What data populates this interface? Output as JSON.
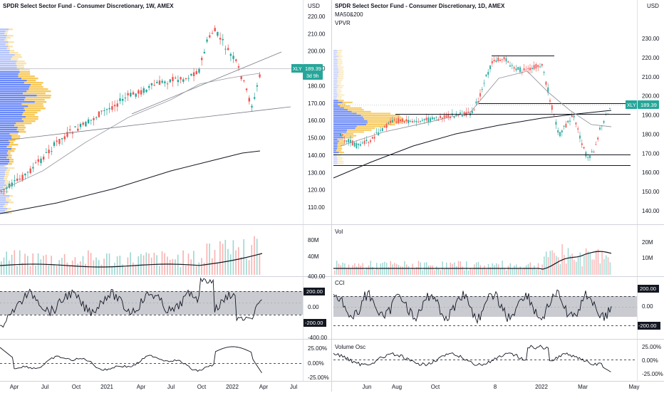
{
  "left": {
    "title": "SPDR Select Sector Fund - Consumer Discretionary, 1W, AMEX",
    "currency": "USD",
    "price_ticks": [
      "220.00",
      "210.00",
      "200.00",
      "190.00",
      "180.00",
      "170.00",
      "160.00",
      "150.00",
      "140.00",
      "130.00",
      "120.00",
      "110.00"
    ],
    "ticker": "XLY",
    "price": "189.39",
    "countdown": "3d 9h",
    "vol_ticks": [
      "80M",
      "40M",
      "400.00"
    ],
    "cci_ticks": [
      "200.00",
      "0.00",
      "-200.00",
      "-400.00"
    ],
    "osc_ticks": [
      "25.00%",
      "0.00%",
      "-25.00%"
    ],
    "x_ticks": [
      "Apr",
      "Jul",
      "Oct",
      "2021",
      "Apr",
      "Jul",
      "Oct",
      "2022",
      "Apr",
      "Jul"
    ]
  },
  "right": {
    "title": "SPDR Select Sector Fund - Consumer Discretionary, 1D, AMEX",
    "subtitle1": "MA50&200",
    "subtitle2": "VPVR",
    "currency": "USD",
    "price_ticks": [
      "230.00",
      "220.00",
      "210.00",
      "200.00",
      "190.00",
      "180.00",
      "170.00",
      "160.00",
      "150.00",
      "140.00"
    ],
    "ticker": "XLY",
    "price": "189.39",
    "vol_label": "Vol",
    "vol_ticks": [
      "20M",
      "10M"
    ],
    "cci_label": "CCI",
    "cci_ticks": [
      "200.00",
      "0.00",
      "-200.00"
    ],
    "osc_label": "Volume Osc",
    "osc_ticks": [
      "25.00%",
      "0.00%",
      "-25.00%"
    ],
    "x_ticks": [
      "Jun",
      "Aug",
      "Oct",
      "8",
      "2022",
      "Mar",
      "May"
    ]
  },
  "colors": {
    "up": "#26a69a",
    "down": "#ef5350",
    "price_tag": "#26a69a",
    "vp_blue": "#5b7cf7",
    "vp_yellow": "#f5c34a",
    "band": "#b2b5be"
  }
}
